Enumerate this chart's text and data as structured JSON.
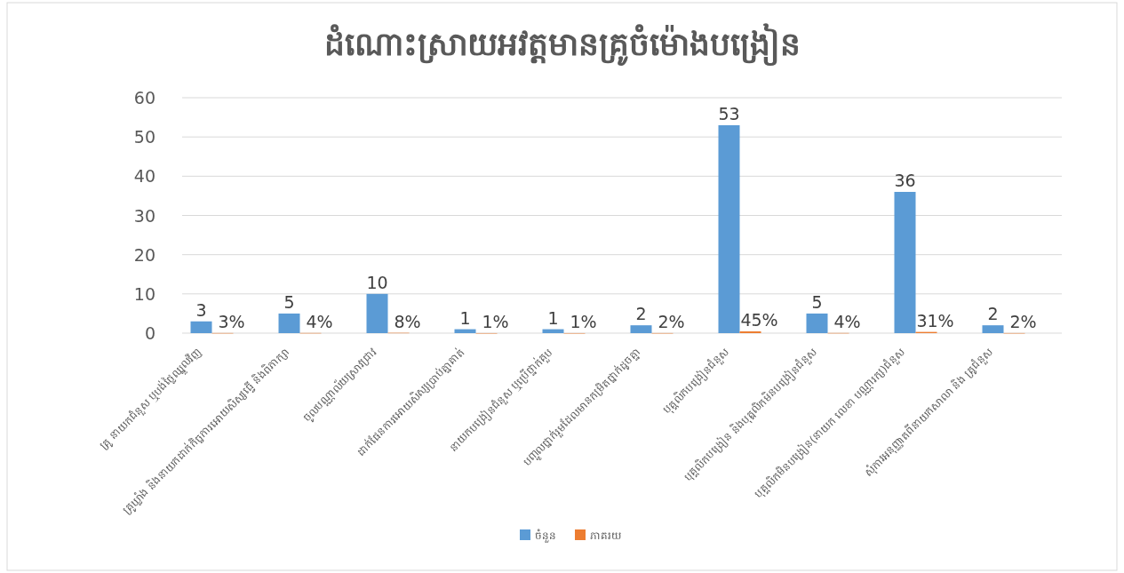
{
  "chart_data": {
    "type": "bar",
    "title": "ដំណោះស្រាយអវត្តមានគ្រូចំម៉ោងបង្រៀន",
    "categories": [
      "គ្រូ នាយកជំនួស ឬបង់ថ្លៃឈ្នួលវិញ",
      "គ្រូឃ្លាំង និងនាយកដាក់កិច្ចការអោយសិស្សធ្វើ និងពិភាក្សា",
      "ចូលបណ្ណាល័យស្រាវជ្រាវ",
      "ដាក់ផែនការអោយសិស្សប្រាប់គ្នាគាត់",
      "នាយកបង្រៀនជំនួស ឬប្រើថ្នាក់គួប",
      "បញ្ចូលថ្នាក់រួមដែលមានកម្រិតថ្នាក់ដូចគ្នា",
      "បុគ្គលិកបង្រៀនជំនួស",
      "បុគ្គលិកបង្រៀន និងបុគ្គលិកមិនបង្រៀនជំនួស",
      "បុគ្គលិកមិនបង្រៀន(នាយក លេខា បណ្ណារក្ស)ជំនួស",
      "សុំការអនុញ្ញាតពីនាយកសាលា និង គ្រូជំនួស"
    ],
    "series": [
      {
        "name": "ចំនួន",
        "color": "#5b9bd5",
        "values": [
          3,
          5,
          10,
          1,
          1,
          2,
          53,
          5,
          36,
          2
        ],
        "value_labels": [
          "3",
          "5",
          "10",
          "1",
          "1",
          "2",
          "53",
          "5",
          "36",
          "2"
        ]
      },
      {
        "name": "ភាគរយ",
        "color": "#ed7d31",
        "values": [
          0.03,
          0.04,
          0.08,
          0.01,
          0.01,
          0.02,
          0.45,
          0.04,
          0.31,
          0.02
        ],
        "value_labels": [
          "3%",
          "4%",
          "8%",
          "1%",
          "1%",
          "2%",
          "45%",
          "4%",
          "31%",
          "2%"
        ]
      }
    ],
    "ylim": [
      0,
      60
    ],
    "yticks": [
      0,
      10,
      20,
      30,
      40,
      50,
      60
    ],
    "grid": "y",
    "legend": "bottom"
  }
}
